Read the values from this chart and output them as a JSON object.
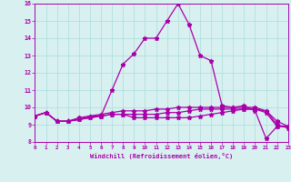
{
  "xlabel": "Windchill (Refroidissement éolien,°C)",
  "x_values": [
    0,
    1,
    2,
    3,
    4,
    5,
    6,
    7,
    8,
    9,
    10,
    11,
    12,
    13,
    14,
    15,
    16,
    17,
    18,
    19,
    20,
    21,
    22,
    23
  ],
  "line1": [
    9.5,
    9.7,
    9.2,
    9.2,
    9.3,
    9.4,
    9.5,
    11.0,
    12.5,
    13.1,
    14.0,
    14.0,
    15.0,
    16.0,
    14.8,
    13.0,
    12.7,
    10.1,
    10.0,
    10.1,
    9.8,
    8.2,
    8.9,
    8.9
  ],
  "line2": [
    9.5,
    9.7,
    9.2,
    9.2,
    9.3,
    9.4,
    9.5,
    9.6,
    9.6,
    9.4,
    9.4,
    9.4,
    9.4,
    9.4,
    9.4,
    9.5,
    9.6,
    9.7,
    9.8,
    9.9,
    9.9,
    9.8,
    9.0,
    8.8
  ],
  "line3": [
    9.5,
    9.7,
    9.2,
    9.2,
    9.4,
    9.5,
    9.6,
    9.7,
    9.8,
    9.8,
    9.8,
    9.9,
    9.9,
    10.0,
    10.0,
    10.0,
    10.0,
    10.0,
    10.0,
    10.0,
    10.0,
    9.8,
    9.2,
    8.9
  ],
  "line4": [
    9.5,
    9.7,
    9.2,
    9.2,
    9.3,
    9.5,
    9.5,
    9.6,
    9.6,
    9.6,
    9.6,
    9.6,
    9.7,
    9.7,
    9.8,
    9.9,
    9.9,
    9.9,
    9.9,
    9.9,
    9.9,
    9.7,
    8.9,
    8.9
  ],
  "line_color": "#aa00aa",
  "bg_color": "#d8f0f0",
  "grid_color": "#aadddd",
  "ylim": [
    8,
    16
  ],
  "xlim": [
    0,
    23
  ],
  "yticks": [
    8,
    9,
    10,
    11,
    12,
    13,
    14,
    15,
    16
  ],
  "xticks": [
    0,
    1,
    2,
    3,
    4,
    5,
    6,
    7,
    8,
    9,
    10,
    11,
    12,
    13,
    14,
    15,
    16,
    17,
    18,
    19,
    20,
    21,
    22,
    23
  ]
}
